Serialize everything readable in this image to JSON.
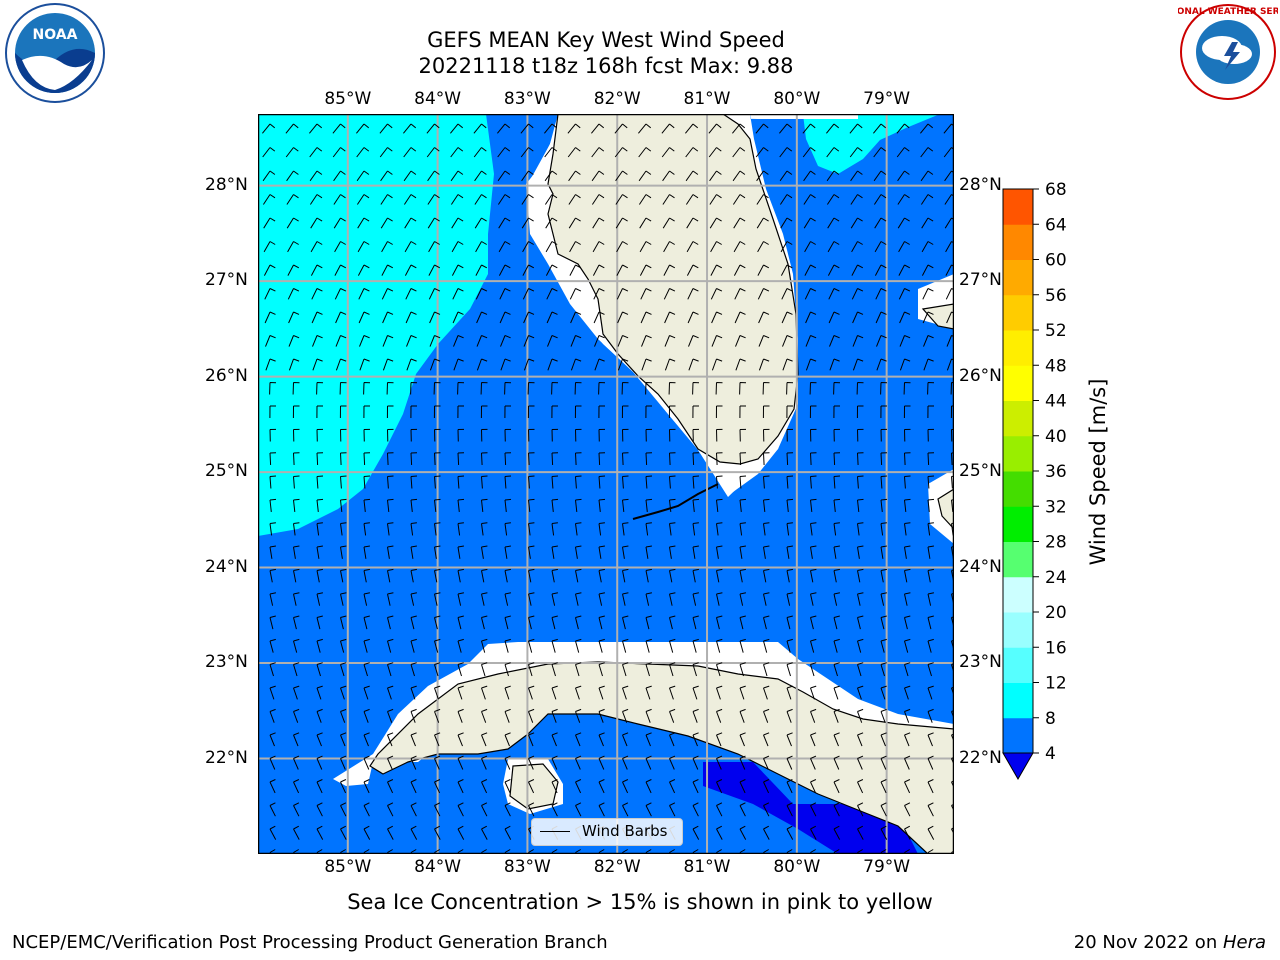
{
  "title": {
    "line1": "GEFS MEAN Key West Wind Speed",
    "line2": "20221118 t18z 168h fcst   Max: 9.88"
  },
  "map": {
    "lon_labels": [
      "85°W",
      "84°W",
      "83°W",
      "82°W",
      "81°W",
      "80°W",
      "79°W"
    ],
    "lat_labels": [
      "28°N",
      "27°N",
      "26°N",
      "25°N",
      "24°N",
      "23°N",
      "22°N"
    ],
    "lon_values": [
      -85,
      -84,
      -83,
      -82,
      -81,
      -80,
      -79
    ],
    "lat_values": [
      28,
      27,
      26,
      25,
      24,
      23,
      22
    ],
    "extent": {
      "lon_min": -86.0,
      "lon_max": -78.25,
      "lat_min": 21.0,
      "lat_max": 28.75
    },
    "colors": {
      "ocean_4_8": "#0074ff",
      "ocean_8_12": "#00ffff",
      "ocean_lt4": "#0000ee",
      "land": "#eeeedd",
      "grid": "#b0b0b0"
    },
    "legend_label": "Wind Barbs"
  },
  "colorbar": {
    "label": "Wind Speed [m/s]",
    "tick_labels": [
      "68",
      "64",
      "60",
      "56",
      "52",
      "48",
      "44",
      "40",
      "36",
      "32",
      "28",
      "24",
      "20",
      "16",
      "12",
      "8",
      "4"
    ],
    "levels": [
      4,
      8,
      12,
      16,
      20,
      24,
      28,
      32,
      36,
      40,
      44,
      48,
      52,
      56,
      60,
      64,
      68
    ],
    "colors": [
      "#0074ff",
      "#00ffff",
      "#56ffff",
      "#99ffff",
      "#ccffff",
      "#56ff70",
      "#00ee00",
      "#44dd00",
      "#99ee00",
      "#ccee00",
      "#ffff00",
      "#ffee00",
      "#ffcc00",
      "#ffaa00",
      "#ff8800",
      "#ff5500",
      "#ff2200",
      "#ff0000"
    ],
    "under_color": "#0000ee"
  },
  "footer": {
    "center": "Sea Ice Concentration > 15% is shown in pink to yellow",
    "left": "NCEP/EMC/Verification Post Processing Product Generation Branch",
    "right_date": "20 Nov 2022 on ",
    "right_machine": "Hera"
  },
  "logos": {
    "noaa_text": "NOAA",
    "nws_text": "NATIONAL WEATHER SERVICE"
  }
}
